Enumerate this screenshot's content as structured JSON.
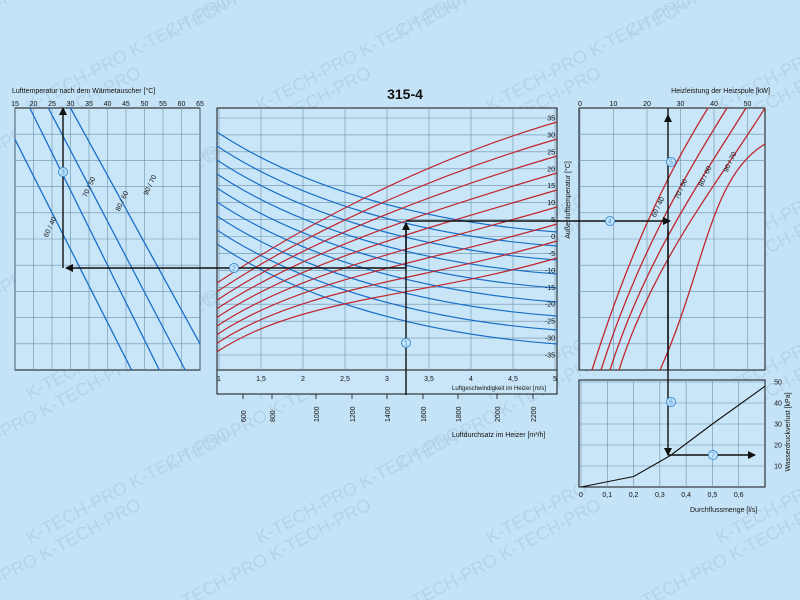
{
  "watermark": "K-TECH-PRO",
  "colors": {
    "background": "#c5e3f6",
    "panel": "#c9e6f8",
    "grid": "#6f8fa8",
    "blue_curve": "#1a6fc8",
    "red_curve": "#c0262d",
    "arrow": "#111111",
    "marker": "#3a8fd6"
  },
  "chart_data": [
    {
      "id": "left",
      "type": "line",
      "title": "Lufttemperatur nach dem Wärmetauscher [°C]",
      "x_ticks": [
        "15",
        "20",
        "25",
        "30",
        "35",
        "40",
        "45",
        "50",
        "55",
        "60",
        "65"
      ],
      "series_labels": [
        "60 / 40",
        "70 / 50",
        "80 / 60",
        "90 / 70"
      ],
      "series": [
        {
          "name": "60 / 40",
          "points": [
            [
              15,
              0.88
            ],
            [
              46.5,
              0
            ]
          ]
        },
        {
          "name": "70 / 50",
          "points": [
            [
              19,
              1
            ],
            [
              54,
              0
            ]
          ]
        },
        {
          "name": "80 / 60",
          "points": [
            [
              24,
              1
            ],
            [
              61,
              0
            ]
          ]
        },
        {
          "name": "90 / 70",
          "points": [
            [
              30,
              1
            ],
            [
              65,
              0.1
            ]
          ]
        }
      ],
      "marker": {
        "label": "3",
        "x": 28.5
      }
    },
    {
      "id": "center",
      "type": "line",
      "title": "315-4",
      "x_ticks_velocity": [
        "1",
        "1,5",
        "2",
        "2,5",
        "3",
        "3,5",
        "4",
        "4,5",
        "5"
      ],
      "xlabel_velocity": "Luftgeschwindigkeit im Heizer [m/s]",
      "x_ticks_flow": [
        "600",
        "800",
        "1000",
        "1200",
        "1400",
        "1600",
        "1800",
        "2000",
        "2200"
      ],
      "xlabel_flow": "Luftdurchsatz im Heizer [m³/h]",
      "y_ticks": [
        "35",
        "30",
        "25",
        "20",
        "15",
        "10",
        "5",
        "0",
        "-5",
        "-10",
        "-15",
        "-20",
        "-25",
        "-30",
        "-35"
      ],
      "ylabel": "Außenlufttemperatur [°C]",
      "blue_series_count": 9,
      "red_series_count": 9,
      "markers": [
        {
          "label": "1",
          "velocity": 3.2
        },
        {
          "label": "2",
          "y": -10
        }
      ]
    },
    {
      "id": "right_top",
      "type": "line",
      "title": "Heizleistung der Heizspule [kW]",
      "x_ticks": [
        "0",
        "10",
        "20",
        "30",
        "40",
        "50"
      ],
      "series_labels": [
        "60 / 40",
        "70 / 50",
        "80 / 60",
        "90 / 70"
      ],
      "markers": [
        {
          "label": "4"
        },
        {
          "label": "5",
          "x": 27
        }
      ]
    },
    {
      "id": "right_bottom",
      "type": "line",
      "xlabel": "Durchflussmenge [l/s]",
      "ylabel": "Wasserdruckverlust [kPa]",
      "x_ticks": [
        "0",
        "0,1",
        "0,2",
        "0,3",
        "0,4",
        "0,5",
        "0,6"
      ],
      "y_ticks": [
        "10",
        "20",
        "30",
        "40",
        "50"
      ],
      "series": [
        {
          "points": [
            [
              0,
              0
            ],
            [
              0.2,
              5
            ],
            [
              0.34,
              15
            ],
            [
              0.5,
              30
            ],
            [
              0.7,
              48
            ]
          ]
        }
      ],
      "markers": [
        {
          "label": "6",
          "x": 0.34
        },
        {
          "label": "7",
          "y": 15
        }
      ]
    }
  ]
}
